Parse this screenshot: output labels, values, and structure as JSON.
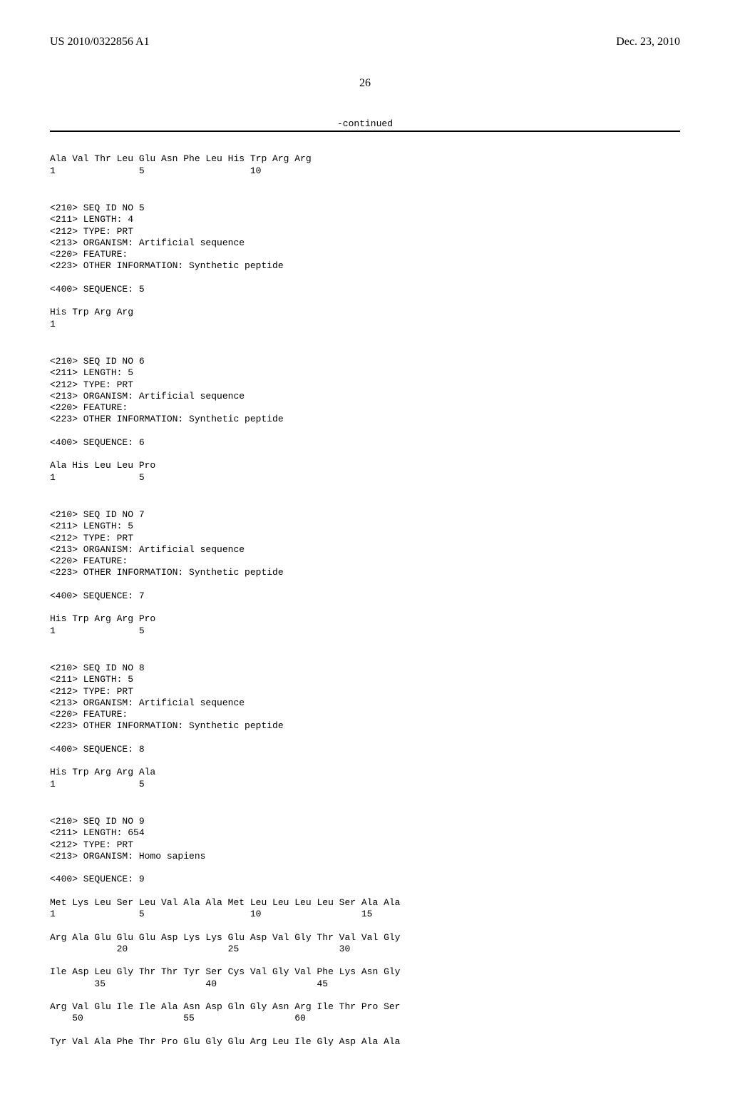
{
  "header": {
    "publication_number": "US 2010/0322856 A1",
    "publication_date": "Dec. 23, 2010"
  },
  "page_number": "26",
  "continued_label": "-continued",
  "seq4_residues": "Ala Val Thr Leu Glu Asn Phe Leu His Trp Arg Arg",
  "seq4_numbers": "1               5                   10",
  "seq5": {
    "line_210": "<210> SEQ ID NO 5",
    "line_211": "<211> LENGTH: 4",
    "line_212": "<212> TYPE: PRT",
    "line_213": "<213> ORGANISM: Artificial sequence",
    "line_220": "<220> FEATURE:",
    "line_223": "<223> OTHER INFORMATION: Synthetic peptide",
    "line_400": "<400> SEQUENCE: 5",
    "residues": "His Trp Arg Arg",
    "numbers": "1"
  },
  "seq6": {
    "line_210": "<210> SEQ ID NO 6",
    "line_211": "<211> LENGTH: 5",
    "line_212": "<212> TYPE: PRT",
    "line_213": "<213> ORGANISM: Artificial sequence",
    "line_220": "<220> FEATURE:",
    "line_223": "<223> OTHER INFORMATION: Synthetic peptide",
    "line_400": "<400> SEQUENCE: 6",
    "residues": "Ala His Leu Leu Pro",
    "numbers": "1               5"
  },
  "seq7": {
    "line_210": "<210> SEQ ID NO 7",
    "line_211": "<211> LENGTH: 5",
    "line_212": "<212> TYPE: PRT",
    "line_213": "<213> ORGANISM: Artificial sequence",
    "line_220": "<220> FEATURE:",
    "line_223": "<223> OTHER INFORMATION: Synthetic peptide",
    "line_400": "<400> SEQUENCE: 7",
    "residues": "His Trp Arg Arg Pro",
    "numbers": "1               5"
  },
  "seq8": {
    "line_210": "<210> SEQ ID NO 8",
    "line_211": "<211> LENGTH: 5",
    "line_212": "<212> TYPE: PRT",
    "line_213": "<213> ORGANISM: Artificial sequence",
    "line_220": "<220> FEATURE:",
    "line_223": "<223> OTHER INFORMATION: Synthetic peptide",
    "line_400": "<400> SEQUENCE: 8",
    "residues": "His Trp Arg Arg Ala",
    "numbers": "1               5"
  },
  "seq9": {
    "line_210": "<210> SEQ ID NO 9",
    "line_211": "<211> LENGTH: 654",
    "line_212": "<212> TYPE: PRT",
    "line_213": "<213> ORGANISM: Homo sapiens",
    "line_400": "<400> SEQUENCE: 9",
    "row1_res": "Met Lys Leu Ser Leu Val Ala Ala Met Leu Leu Leu Leu Ser Ala Ala",
    "row1_num": "1               5                   10                  15",
    "row2_res": "Arg Ala Glu Glu Glu Asp Lys Lys Glu Asp Val Gly Thr Val Val Gly",
    "row2_num": "            20                  25                  30",
    "row3_res": "Ile Asp Leu Gly Thr Thr Tyr Ser Cys Val Gly Val Phe Lys Asn Gly",
    "row3_num": "        35                  40                  45",
    "row4_res": "Arg Val Glu Ile Ile Ala Asn Asp Gln Gly Asn Arg Ile Thr Pro Ser",
    "row4_num": "    50                  55                  60",
    "row5_res": "Tyr Val Ala Phe Thr Pro Glu Gly Glu Arg Leu Ile Gly Asp Ala Ala"
  }
}
